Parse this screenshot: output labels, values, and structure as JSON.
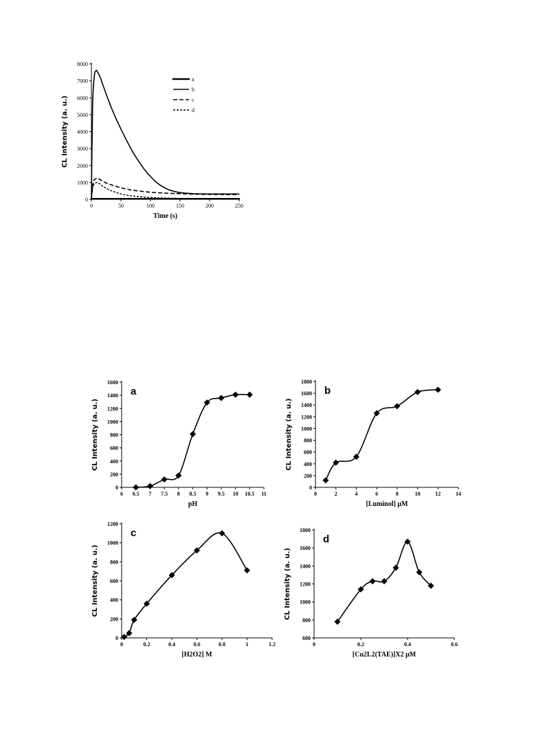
{
  "chart_data": [
    {
      "id": "kinetic",
      "type": "line",
      "xlabel": "Time (s)",
      "ylabel": "CL Intensity (a. u.)",
      "xlim": [
        0,
        250
      ],
      "ylim": [
        0,
        8000
      ],
      "xticks": [
        0,
        50,
        100,
        150,
        200,
        250
      ],
      "yticks": [
        0,
        1000,
        2000,
        3000,
        4000,
        5000,
        6000,
        7000,
        8000
      ],
      "legend_position": "top-right",
      "series": [
        {
          "name": "a",
          "style": "dotted-heavy",
          "x": [
            0,
            50,
            100,
            150,
            200,
            250
          ],
          "y": [
            30,
            30,
            30,
            30,
            30,
            30
          ]
        },
        {
          "name": "b",
          "style": "solid",
          "x": [
            0,
            2,
            5,
            8,
            10,
            15,
            20,
            30,
            40,
            50,
            60,
            70,
            80,
            90,
            100,
            110,
            120,
            130,
            140,
            150,
            170,
            200,
            250
          ],
          "y": [
            0,
            5500,
            7300,
            7600,
            7550,
            7200,
            6700,
            5750,
            4900,
            4150,
            3450,
            2800,
            2250,
            1750,
            1350,
            1000,
            760,
            580,
            470,
            400,
            340,
            320,
            320
          ]
        },
        {
          "name": "c",
          "style": "dashed",
          "x": [
            0,
            3,
            8,
            12,
            20,
            30,
            50,
            70,
            100,
            130,
            160,
            200,
            250
          ],
          "y": [
            0,
            1000,
            1230,
            1220,
            1050,
            900,
            680,
            540,
            420,
            360,
            320,
            290,
            280
          ]
        },
        {
          "name": "d",
          "style": "dashed-short",
          "x": [
            0,
            3,
            8,
            12,
            20,
            30,
            50,
            70,
            100,
            130,
            160,
            200,
            250
          ],
          "y": [
            0,
            800,
            980,
            960,
            760,
            560,
            320,
            200,
            110,
            70,
            50,
            40,
            30
          ]
        }
      ]
    },
    {
      "id": "a",
      "type": "line",
      "panel_label": "a",
      "xlabel": "pH",
      "ylabel": "CL Intensity (a. u.)",
      "xlim": [
        6,
        11
      ],
      "ylim": [
        0,
        1600
      ],
      "xticks": [
        6,
        6.5,
        7,
        7.5,
        8,
        8.5,
        9,
        9.5,
        10,
        10.5,
        11
      ],
      "yticks": [
        0,
        200,
        400,
        600,
        800,
        1000,
        1200,
        1400,
        1600
      ],
      "series": [
        {
          "x": [
            6.5,
            7,
            7.5,
            8,
            8.5,
            9,
            9.5,
            10,
            10.5
          ],
          "y": [
            0,
            20,
            120,
            180,
            810,
            1290,
            1360,
            1410,
            1410
          ]
        }
      ]
    },
    {
      "id": "b",
      "type": "line",
      "panel_label": "b",
      "xlabel": "[Luminol] μM",
      "ylabel": "CL Intensity (a. u.)",
      "xlim": [
        0,
        14
      ],
      "ylim": [
        0,
        1800
      ],
      "xticks": [
        0,
        2,
        4,
        6,
        8,
        10,
        12,
        14
      ],
      "yticks": [
        0,
        200,
        400,
        600,
        800,
        1000,
        1200,
        1400,
        1600,
        1800
      ],
      "series": [
        {
          "x": [
            1,
            2,
            4,
            6,
            8,
            10,
            12
          ],
          "y": [
            120,
            420,
            520,
            1260,
            1380,
            1620,
            1660
          ]
        }
      ]
    },
    {
      "id": "c",
      "type": "line",
      "panel_label": "c",
      "xlabel": "[H2O2] M",
      "ylabel": "CL Intensity (a. u.)",
      "xlim": [
        0,
        1.2
      ],
      "ylim": [
        0,
        1200
      ],
      "xticks": [
        0,
        0.2,
        0.4,
        0.6,
        0.8,
        1,
        1.2
      ],
      "yticks": [
        0,
        200,
        400,
        600,
        800,
        1000,
        1200
      ],
      "series": [
        {
          "x": [
            0.02,
            0.06,
            0.1,
            0.2,
            0.4,
            0.6,
            0.8,
            1.0
          ],
          "y": [
            10,
            50,
            190,
            360,
            660,
            920,
            1100,
            710
          ]
        }
      ]
    },
    {
      "id": "d",
      "type": "line",
      "panel_label": "d",
      "xlabel": "[Cu2L2(TAE)]X2 μM",
      "ylabel": "CL Intensity (a. u.)",
      "xlim": [
        0,
        0.6
      ],
      "ylim": [
        600,
        1800
      ],
      "xticks": [
        0,
        0.2,
        0.4,
        0.6
      ],
      "yticks": [
        600,
        800,
        1000,
        1200,
        1400,
        1600,
        1800
      ],
      "series": [
        {
          "x": [
            0.1,
            0.2,
            0.25,
            0.3,
            0.35,
            0.4,
            0.45,
            0.5
          ],
          "y": [
            780,
            1140,
            1230,
            1230,
            1380,
            1670,
            1330,
            1180
          ]
        }
      ]
    }
  ]
}
